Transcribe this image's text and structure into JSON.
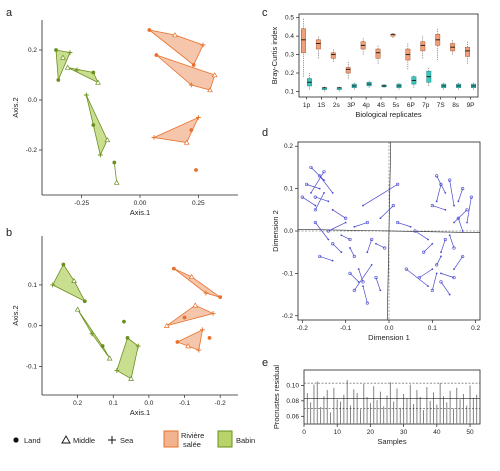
{
  "panel_letters": {
    "a": "a",
    "b": "b",
    "c": "c",
    "d": "d",
    "e": "e"
  },
  "colors": {
    "riviere": "#e8702a",
    "riviere_fill": "#f2b38f",
    "babin": "#6a8f1f",
    "babin_fill": "#b7d36a",
    "box_orange": "#f0a07a",
    "box_teal": "#3cc6c0",
    "segment": "#4a4ad0",
    "bar": "#777777"
  },
  "legend": {
    "land": "Land",
    "middle": "Middle",
    "sea": "Sea",
    "riviere_line1": "Rivière",
    "riviere_line2": "salée",
    "babin": "Babin",
    "land_icon": "filled-circle-icon",
    "middle_icon": "triangle-icon",
    "sea_icon": "plus-icon"
  },
  "chart_data": [
    {
      "panel": "a",
      "type": "scatter",
      "xlabel": "Axis.1",
      "ylabel": "Axis.2",
      "xlim": [
        -0.42,
        0.42
      ],
      "ylim": [
        -0.38,
        0.32
      ],
      "xticks": [
        -0.25,
        0.0,
        0.25
      ],
      "xticklabels": [
        "-0.25",
        "0.00",
        "0.25"
      ],
      "yticks": [
        -0.2,
        0.0,
        0.2
      ],
      "yticklabels": [
        "-0.2",
        "0.0",
        "0.2"
      ],
      "groups": [
        {
          "site": "Babin",
          "points": [
            [
              -0.36,
              0.2
            ],
            [
              -0.33,
              0.17
            ],
            [
              -0.3,
              0.19
            ],
            [
              -0.35,
              0.08
            ],
            [
              -0.31,
              0.13
            ],
            [
              -0.27,
              0.12
            ],
            [
              -0.2,
              0.11
            ],
            [
              -0.18,
              0.07
            ],
            [
              -0.23,
              0.02
            ],
            [
              -0.2,
              -0.1
            ],
            [
              -0.14,
              -0.16
            ],
            [
              -0.17,
              -0.22
            ],
            [
              -0.11,
              -0.25
            ],
            [
              -0.1,
              -0.33
            ]
          ]
        },
        {
          "site": "Rivière salée",
          "points": [
            [
              0.04,
              0.28
            ],
            [
              0.15,
              0.26
            ],
            [
              0.27,
              0.22
            ],
            [
              0.23,
              0.14
            ],
            [
              0.32,
              0.1
            ],
            [
              0.22,
              0.06
            ],
            [
              0.07,
              0.18
            ],
            [
              0.3,
              0.04
            ],
            [
              0.25,
              -0.07
            ],
            [
              0.22,
              -0.12
            ],
            [
              0.2,
              -0.17
            ],
            [
              0.06,
              -0.15
            ],
            [
              0.24,
              -0.28
            ]
          ]
        }
      ]
    },
    {
      "panel": "b",
      "type": "scatter",
      "xlabel": "Axis.1",
      "ylabel": "Axis.2",
      "xlim": [
        0.3,
        -0.25
      ],
      "ylim": [
        -0.17,
        0.22
      ],
      "xticks": [
        0.2,
        0.1,
        0.0,
        -0.1,
        -0.2
      ],
      "xticklabels": [
        "0.2",
        "0.1",
        "0.0",
        "-0.1",
        "-0.2"
      ],
      "yticks": [
        -0.1,
        0.0,
        0.1
      ],
      "yticklabels": [
        "-0.1",
        "0.0",
        "0.1"
      ],
      "groups": [
        {
          "site": "Babin",
          "points": [
            [
              0.24,
              0.15
            ],
            [
              0.21,
              0.11
            ],
            [
              0.27,
              0.1
            ],
            [
              0.18,
              0.06
            ],
            [
              0.2,
              0.04
            ],
            [
              0.16,
              -0.02
            ],
            [
              0.13,
              -0.05
            ],
            [
              0.11,
              -0.08
            ],
            [
              0.09,
              -0.11
            ],
            [
              0.06,
              -0.03
            ],
            [
              0.05,
              -0.13
            ],
            [
              0.03,
              -0.05
            ],
            [
              0.07,
              0.01
            ]
          ]
        },
        {
          "site": "Rivière salée",
          "points": [
            [
              -0.07,
              0.14
            ],
            [
              -0.12,
              0.12
            ],
            [
              -0.16,
              0.08
            ],
            [
              -0.2,
              0.07
            ],
            [
              -0.13,
              0.05
            ],
            [
              -0.18,
              0.03
            ],
            [
              -0.1,
              0.02
            ],
            [
              -0.05,
              0.0
            ],
            [
              -0.15,
              -0.01
            ],
            [
              -0.08,
              -0.04
            ],
            [
              -0.11,
              -0.05
            ],
            [
              -0.14,
              -0.06
            ],
            [
              -0.17,
              -0.03
            ]
          ]
        }
      ]
    },
    {
      "panel": "c",
      "type": "box",
      "xlabel": "Biological replicates",
      "ylabel": "Bray-Curtis index",
      "ylim": [
        0.07,
        0.52
      ],
      "yticks": [
        0.1,
        0.2,
        0.3,
        0.4,
        0.5
      ],
      "yticklabels": [
        "0.1",
        "0.2",
        "0.3",
        "0.4",
        "0.5"
      ],
      "xticklabels": [
        "1p",
        "1S",
        "2s",
        "3P",
        "4p",
        "4S",
        "5s",
        "6P",
        "7p",
        "7S",
        "8s",
        "9P"
      ],
      "series": [
        {
          "name": "orange",
          "boxes": [
            [
              0.18,
              0.31,
              0.38,
              0.44,
              0.5
            ],
            [
              0.28,
              0.33,
              0.36,
              0.38,
              0.4
            ],
            [
              0.26,
              0.28,
              0.3,
              0.31,
              0.33
            ],
            [
              0.17,
              0.2,
              0.22,
              0.23,
              0.26
            ],
            [
              0.3,
              0.33,
              0.35,
              0.37,
              0.39
            ],
            [
              0.25,
              0.28,
              0.31,
              0.33,
              0.35
            ],
            [
              0.39,
              0.4,
              0.41,
              0.41,
              0.42
            ],
            [
              0.22,
              0.27,
              0.3,
              0.33,
              0.36
            ],
            [
              0.28,
              0.32,
              0.35,
              0.37,
              0.4
            ],
            [
              0.27,
              0.35,
              0.38,
              0.41,
              0.44
            ],
            [
              0.3,
              0.32,
              0.34,
              0.36,
              0.38
            ],
            [
              0.25,
              0.29,
              0.32,
              0.34,
              0.37
            ]
          ]
        },
        {
          "name": "teal",
          "boxes": [
            [
              0.11,
              0.13,
              0.15,
              0.17,
              0.2
            ],
            [
              0.1,
              0.11,
              0.12,
              0.12,
              0.13
            ],
            [
              0.1,
              0.11,
              0.12,
              0.12,
              0.13
            ],
            [
              0.11,
              0.12,
              0.13,
              0.14,
              0.15
            ],
            [
              0.12,
              0.13,
              0.14,
              0.15,
              0.16
            ],
            [
              0.12,
              0.125,
              0.13,
              0.135,
              0.14
            ],
            [
              0.11,
              0.12,
              0.13,
              0.14,
              0.15
            ],
            [
              0.12,
              0.14,
              0.16,
              0.18,
              0.19
            ],
            [
              0.13,
              0.15,
              0.18,
              0.21,
              0.23
            ],
            [
              0.11,
              0.12,
              0.13,
              0.14,
              0.15
            ],
            [
              0.11,
              0.12,
              0.13,
              0.14,
              0.15
            ],
            [
              0.11,
              0.12,
              0.13,
              0.14,
              0.15
            ]
          ]
        }
      ]
    },
    {
      "panel": "d",
      "type": "procrustes",
      "xlabel": "Dimension 1",
      "ylabel": "Dimension 2",
      "xlim": [
        -0.21,
        0.21
      ],
      "ylim": [
        -0.21,
        0.21
      ],
      "xticks": [
        -0.2,
        -0.1,
        0.0,
        0.1,
        0.2
      ],
      "xticklabels": [
        "-0.2",
        "-0.1",
        "0.0",
        "0.1",
        "0.2"
      ],
      "yticks": [
        -0.2,
        -0.1,
        0.0,
        0.1,
        0.2
      ],
      "yticklabels": [
        "-0.2",
        "-0.1",
        "0.0",
        "0.1",
        "0.2"
      ],
      "segments": [
        [
          -0.18,
          0.15,
          -0.15,
          0.12
        ],
        [
          -0.19,
          0.11,
          -0.16,
          0.1
        ],
        [
          -0.17,
          0.08,
          -0.14,
          0.07
        ],
        [
          -0.16,
          0.13,
          -0.13,
          0.09
        ],
        [
          -0.2,
          0.08,
          -0.17,
          0.06
        ],
        [
          -0.15,
          0.14,
          -0.18,
          0.09
        ],
        [
          -0.17,
          0.05,
          -0.15,
          0.09
        ],
        [
          0.02,
          0.11,
          -0.06,
          0.06
        ],
        [
          -0.1,
          0.03,
          -0.13,
          0.05
        ],
        [
          -0.05,
          0.02,
          -0.08,
          0.01
        ],
        [
          0.01,
          0.06,
          -0.02,
          0.03
        ],
        [
          -0.13,
          -0.03,
          -0.11,
          -0.05
        ],
        [
          -0.16,
          -0.06,
          -0.13,
          -0.07
        ],
        [
          -0.09,
          -0.02,
          -0.11,
          -0.01
        ],
        [
          -0.14,
          0.0,
          -0.1,
          0.02
        ],
        [
          -0.08,
          -0.06,
          -0.09,
          -0.04
        ],
        [
          -0.17,
          0.02,
          -0.14,
          -0.02
        ],
        [
          -0.08,
          -0.14,
          -0.04,
          -0.08
        ],
        [
          -0.06,
          -0.12,
          -0.07,
          -0.09
        ],
        [
          -0.05,
          -0.17,
          -0.06,
          -0.13
        ],
        [
          -0.01,
          -0.04,
          -0.03,
          -0.03
        ],
        [
          -0.04,
          -0.02,
          -0.05,
          -0.05
        ],
        [
          -0.03,
          -0.11,
          -0.02,
          -0.14
        ],
        [
          -0.09,
          -0.1,
          -0.07,
          -0.12
        ],
        [
          0.11,
          0.13,
          0.13,
          0.09
        ],
        [
          0.14,
          0.12,
          0.15,
          0.06
        ],
        [
          0.17,
          0.1,
          0.16,
          0.07
        ],
        [
          0.1,
          0.06,
          0.13,
          0.05
        ],
        [
          0.18,
          0.05,
          0.15,
          0.02
        ],
        [
          0.16,
          0.03,
          0.17,
          0.0
        ],
        [
          0.12,
          0.11,
          0.11,
          0.07
        ],
        [
          0.19,
          0.08,
          0.18,
          0.02
        ],
        [
          0.06,
          0.0,
          0.09,
          -0.02
        ],
        [
          0.02,
          0.02,
          0.05,
          0.01
        ],
        [
          0.08,
          -0.05,
          0.1,
          -0.03
        ],
        [
          0.13,
          -0.02,
          0.12,
          -0.05
        ],
        [
          0.15,
          -0.04,
          0.14,
          -0.01
        ],
        [
          0.11,
          -0.08,
          0.12,
          -0.06
        ],
        [
          0.17,
          -0.06,
          0.15,
          -0.09
        ],
        [
          0.04,
          -0.09,
          0.09,
          -0.13
        ],
        [
          0.12,
          -0.12,
          0.14,
          -0.15
        ],
        [
          0.1,
          -0.14,
          0.11,
          -0.1
        ],
        [
          0.15,
          -0.11,
          0.12,
          -0.1
        ],
        [
          0.07,
          -0.11,
          0.1,
          -0.09
        ]
      ]
    },
    {
      "panel": "e",
      "type": "bar",
      "xlabel": "Samples",
      "ylabel": "Procrustes residual",
      "xlim": [
        0,
        53
      ],
      "ylim": [
        0.0,
        0.14
      ],
      "xticks": [
        0,
        10,
        20,
        30,
        40,
        50
      ],
      "xticklabels": [
        "0",
        "10",
        "20",
        "30",
        "40",
        "50"
      ],
      "yticks": [
        0.06,
        0.08,
        0.1
      ],
      "yticklabels": [
        "0.06",
        "0.08",
        "0.10"
      ],
      "hlines": [
        0.07,
        0.083,
        0.103
      ],
      "values": [
        0.09,
        0.078,
        0.101,
        0.105,
        0.072,
        0.086,
        0.094,
        0.065,
        0.097,
        0.082,
        0.079,
        0.088,
        0.107,
        0.074,
        0.095,
        0.09,
        0.069,
        0.102,
        0.085,
        0.077,
        0.099,
        0.081,
        0.092,
        0.073,
        0.087,
        0.104,
        0.079,
        0.096,
        0.071,
        0.089,
        0.083,
        0.101,
        0.076,
        0.094,
        0.085,
        0.068,
        0.098,
        0.08,
        0.091,
        0.075,
        0.103,
        0.086,
        0.078,
        0.093,
        0.07,
        0.097,
        0.082,
        0.089,
        0.074,
        0.1,
        0.084,
        0.088
      ]
    }
  ]
}
